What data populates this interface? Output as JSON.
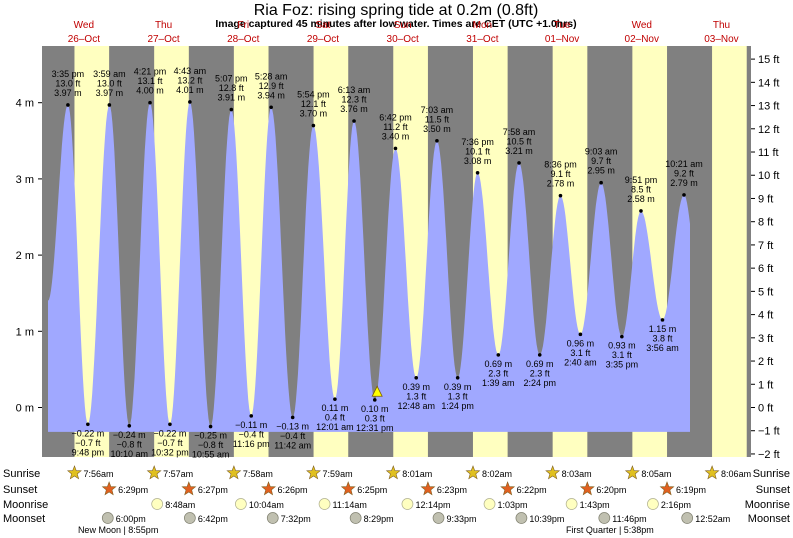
{
  "title": "Ria Foz: rising  spring tide at 0.2m (0.8ft)",
  "subtitle": "Image captured 45 minutes after low water. Times are CET (UTC +1.0hrs)",
  "colors": {
    "night": "#808080",
    "day": "#ffffc0",
    "water": "#a0a8ff",
    "day_label": "#c00000",
    "text": "#000000",
    "marker": "#ffff00",
    "sun": "#e0c020",
    "sunset": "#e06020",
    "moon_rise": "#ffffc0",
    "moon_set": "#c0c0b0"
  },
  "days": [
    {
      "name": "Wed",
      "date": "26–Oct"
    },
    {
      "name": "Thu",
      "date": "27–Oct"
    },
    {
      "name": "Fri",
      "date": "28–Oct"
    },
    {
      "name": "Sat",
      "date": "29–Oct"
    },
    {
      "name": "Sun",
      "date": "30–Oct"
    },
    {
      "name": "Mon",
      "date": "31–Oct"
    },
    {
      "name": "Tue",
      "date": "01–Nov"
    },
    {
      "name": "Wed",
      "date": "02–Nov"
    },
    {
      "name": "Thu",
      "date": "03–Nov"
    }
  ],
  "chart_data": {
    "type": "area",
    "left_axis": {
      "ticks": [
        "4 m",
        "3 m",
        "2 m",
        "1 m",
        "0 m"
      ],
      "values": [
        4,
        3,
        2,
        1,
        0
      ],
      "ylim": [
        -0.75,
        4.6
      ]
    },
    "right_axis": {
      "ticks": [
        "15 ft",
        "14 ft",
        "13 ft",
        "12 ft",
        "11 ft",
        "10 ft",
        "9 ft",
        "8 ft",
        "7 ft",
        "6 ft",
        "5 ft",
        "4 ft",
        "3 ft",
        "2 ft",
        "1 ft",
        "0 ft",
        "−1 ft",
        "−2 ft"
      ],
      "values": [
        15,
        14,
        13,
        12,
        11,
        10,
        9,
        8,
        7,
        6,
        5,
        4,
        3,
        2,
        1,
        0,
        -1,
        -2
      ]
    },
    "grid": false,
    "tides": [
      {
        "type": "high",
        "h": 3.97,
        "x": 0.25,
        "time": "3:35 pm",
        "ft": "13.0 ft",
        "m": "3.97 m"
      },
      {
        "type": "low",
        "h": -0.22,
        "x": 0.5,
        "time": "9:48 pm",
        "ft": "−0.7 ft",
        "m": "−0.22 m"
      },
      {
        "type": "high",
        "h": 3.97,
        "x": 0.77,
        "time": "3:59 am",
        "ft": "13.0 ft",
        "m": "3.97 m"
      },
      {
        "type": "low",
        "h": -0.24,
        "x": 1.02,
        "time": "10:10 am",
        "ft": "−0.8 ft",
        "m": "−0.24 m"
      },
      {
        "type": "high",
        "h": 4.0,
        "x": 1.28,
        "time": "4:21 pm",
        "ft": "13.1 ft",
        "m": "4.00 m"
      },
      {
        "type": "low",
        "h": -0.22,
        "x": 1.53,
        "time": "10:32 pm",
        "ft": "−0.7 ft",
        "m": "−0.22 m"
      },
      {
        "type": "high",
        "h": 4.01,
        "x": 1.78,
        "time": "4:43 am",
        "ft": "13.2 ft",
        "m": "4.01 m"
      },
      {
        "type": "low",
        "h": -0.25,
        "x": 2.04,
        "time": "10:55 am",
        "ft": "−0.8 ft",
        "m": "−0.25 m"
      },
      {
        "type": "high",
        "h": 3.91,
        "x": 2.3,
        "time": "5:07 pm",
        "ft": "12.8 ft",
        "m": "3.91 m"
      },
      {
        "type": "low",
        "h": -0.11,
        "x": 2.55,
        "time": "11:16 pm",
        "ft": "−0.4 ft",
        "m": "−0.11 m"
      },
      {
        "type": "high",
        "h": 3.94,
        "x": 2.8,
        "time": "5:28 am",
        "ft": "12.9 ft",
        "m": "3.94 m"
      },
      {
        "type": "low",
        "h": -0.13,
        "x": 3.07,
        "time": "11:42 am",
        "ft": "−0.4 ft",
        "m": "−0.13 m"
      },
      {
        "type": "high",
        "h": 3.7,
        "x": 3.33,
        "time": "5:54 pm",
        "ft": "12.1 ft",
        "m": "3.70 m"
      },
      {
        "type": "low",
        "h": 0.11,
        "x": 3.6,
        "time": "12:01 am",
        "ft": "0.4 ft",
        "m": "0.11 m"
      },
      {
        "type": "high",
        "h": 3.76,
        "x": 3.84,
        "time": "6:13 am",
        "ft": "12.3 ft",
        "m": "3.76 m"
      },
      {
        "type": "low",
        "h": 0.1,
        "x": 4.1,
        "time": "12:31 pm",
        "ft": "0.3 ft",
        "m": "0.10 m"
      },
      {
        "type": "high",
        "h": 3.4,
        "x": 4.36,
        "time": "6:42 pm",
        "ft": "11.2 ft",
        "m": "3.40 m"
      },
      {
        "type": "low",
        "h": 0.39,
        "x": 4.62,
        "time": "12:48 am",
        "ft": "1.3 ft",
        "m": "0.39 m"
      },
      {
        "type": "high",
        "h": 3.5,
        "x": 4.88,
        "time": "7:03 am",
        "ft": "11.5 ft",
        "m": "3.50 m"
      },
      {
        "type": "low",
        "h": 0.39,
        "x": 5.14,
        "time": "1:24 pm",
        "ft": "1.3 ft",
        "m": "0.39 m"
      },
      {
        "type": "high",
        "h": 3.08,
        "x": 5.39,
        "time": "7:36 pm",
        "ft": "10.1 ft",
        "m": "3.08 m"
      },
      {
        "type": "low",
        "h": 0.69,
        "x": 5.65,
        "time": "1:39 am",
        "ft": "2.3 ft",
        "m": "0.69 m"
      },
      {
        "type": "high",
        "h": 3.21,
        "x": 5.91,
        "time": "7:58 am",
        "ft": "10.5 ft",
        "m": "3.21 m"
      },
      {
        "type": "low",
        "h": 0.69,
        "x": 6.17,
        "time": "2:24 pm",
        "ft": "2.3 ft",
        "m": "0.69 m"
      },
      {
        "type": "high",
        "h": 2.78,
        "x": 6.43,
        "time": "8:36 pm",
        "ft": "9.1 ft",
        "m": "2.78 m"
      },
      {
        "type": "low",
        "h": 0.96,
        "x": 6.68,
        "time": "2:40 am",
        "ft": "3.1 ft",
        "m": "0.96 m"
      },
      {
        "type": "high",
        "h": 2.95,
        "x": 6.94,
        "time": "9:03 am",
        "ft": "9.7 ft",
        "m": "2.95 m"
      },
      {
        "type": "low",
        "h": 0.93,
        "x": 7.2,
        "time": "3:35 pm",
        "ft": "3.1 ft",
        "m": "0.93 m"
      },
      {
        "type": "high",
        "h": 2.58,
        "x": 7.44,
        "time": "9:51 pm",
        "ft": "8.5 ft",
        "m": "2.58 m"
      },
      {
        "type": "low",
        "h": 1.15,
        "x": 7.71,
        "time": "3:56 am",
        "ft": "3.8 ft",
        "m": "1.15 m"
      },
      {
        "type": "high",
        "h": 2.79,
        "x": 7.98,
        "time": "10:21 am",
        "ft": "9.2 ft",
        "m": "2.79 m"
      }
    ],
    "current": {
      "x": 4.13,
      "h": 0.2
    }
  },
  "astro": {
    "rows": [
      "Sunrise",
      "Sunset",
      "Moonrise",
      "Moonset"
    ],
    "sunrise": [
      "7:56am",
      "7:57am",
      "7:58am",
      "7:59am",
      "8:01am",
      "8:02am",
      "8:03am",
      "8:05am",
      "8:06am"
    ],
    "sunset": [
      "6:29pm",
      "6:27pm",
      "6:26pm",
      "6:25pm",
      "6:23pm",
      "6:22pm",
      "6:20pm",
      "6:19pm"
    ],
    "moonrise": [
      "8:48am",
      "10:04am",
      "11:14am",
      "12:14pm",
      "1:03pm",
      "1:43pm",
      "2:16pm"
    ],
    "moonset": [
      "6:00pm",
      "6:42pm",
      "7:32pm",
      "8:29pm",
      "9:33pm",
      "10:39pm",
      "11:46pm",
      "12:52am"
    ],
    "new_moon": "New Moon | 8:55pm",
    "first_quarter": "First Quarter | 5:38pm"
  }
}
